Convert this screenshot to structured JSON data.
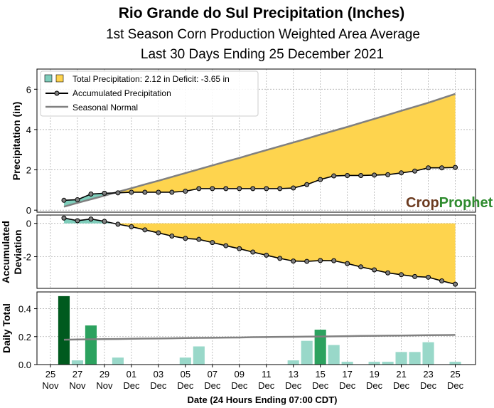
{
  "chart_data": {
    "type": "line",
    "title": "Rio Grande do Sul Precipitation (Inches)",
    "subtitle": "1st Season Corn Production Weighted Area Average",
    "subtitle2": "Last 30 Days Ending 25 December 2021",
    "xlabel": "Date (24 Hours Ending 07:00 CDT)",
    "x_tick_days": [
      "25",
      "27",
      "29",
      "01",
      "03",
      "05",
      "07",
      "09",
      "11",
      "13",
      "15",
      "17",
      "19",
      "21",
      "23",
      "25"
    ],
    "x_tick_months": [
      "Nov",
      "Nov",
      "Nov",
      "Dec",
      "Dec",
      "Dec",
      "Dec",
      "Dec",
      "Dec",
      "Dec",
      "Dec",
      "Dec",
      "Dec",
      "Dec",
      "Dec",
      "Dec"
    ],
    "x_ticks_days_index": [
      0,
      2,
      4,
      6,
      8,
      10,
      12,
      14,
      16,
      18,
      20,
      22,
      24,
      26,
      28,
      30
    ],
    "day_index_start": 1,
    "day_index_end": 30,
    "logo": {
      "part1": "Crop",
      "part2": "Prophet"
    },
    "colors": {
      "surplus": "#7fcdbb",
      "deficit": "#fed44e",
      "accum": "#000000",
      "marker": "#808080",
      "normal": "#808080",
      "bar_dark": "#005a1e",
      "bar_mid": "#2ca25f",
      "bar_light": "#99d8c9",
      "logo_crop": "#6b3a1f",
      "logo_prophet": "#2e8b2e"
    },
    "panel1": {
      "ylabel": "Precipitation (in)",
      "ylim": [
        -0.1,
        7.0
      ],
      "yticks": [
        0,
        2,
        4,
        6
      ],
      "legend": {
        "total": "Total Precipitation: 2.12 in Deficit: -3.65 in",
        "accum": "Accumulated Precipitation",
        "normal": "Seasonal Normal"
      },
      "accumulated": [
        0.49,
        0.52,
        0.8,
        0.84,
        0.86,
        0.89,
        0.89,
        0.89,
        0.89,
        0.94,
        1.07,
        1.07,
        1.07,
        1.07,
        1.07,
        1.07,
        1.07,
        1.1,
        1.27,
        1.52,
        1.7,
        1.72,
        1.72,
        1.74,
        1.76,
        1.85,
        1.94,
        2.1,
        2.1,
        2.12
      ],
      "normal": [
        0.17,
        0.36,
        0.54,
        0.72,
        0.91,
        1.09,
        1.28,
        1.46,
        1.65,
        1.84,
        2.03,
        2.22,
        2.41,
        2.59,
        2.79,
        2.98,
        3.17,
        3.36,
        3.55,
        3.75,
        3.94,
        4.13,
        4.33,
        4.53,
        4.73,
        4.93,
        5.13,
        5.33,
        5.55,
        5.77
      ]
    },
    "panel2": {
      "ylabel_line1": "Accumulated",
      "ylabel_line2": "Deviation",
      "ylim": [
        -3.9,
        0.5
      ],
      "yticks": [
        0,
        -2
      ],
      "deviation": [
        0.32,
        0.16,
        0.26,
        0.12,
        -0.05,
        -0.2,
        -0.39,
        -0.57,
        -0.76,
        -0.9,
        -0.96,
        -1.15,
        -1.34,
        -1.52,
        -1.72,
        -1.91,
        -2.1,
        -2.26,
        -2.28,
        -2.23,
        -2.24,
        -2.41,
        -2.61,
        -2.79,
        -2.97,
        -3.08,
        -3.19,
        -3.23,
        -3.45,
        -3.65
      ]
    },
    "panel3": {
      "ylabel": "Daily Total",
      "ylim": [
        0,
        0.52
      ],
      "yticks": [
        0.0,
        0.2,
        0.4
      ],
      "daily": [
        0.49,
        0.03,
        0.28,
        0.0,
        0.05,
        0.0,
        0.0,
        0.0,
        0.0,
        0.05,
        0.13,
        0.0,
        0.0,
        0.0,
        0.0,
        0.0,
        0.0,
        0.03,
        0.17,
        0.25,
        0.14,
        0.02,
        0.0,
        0.02,
        0.02,
        0.09,
        0.09,
        0.16,
        0.0,
        0.02
      ],
      "normal": [
        0.178,
        0.18,
        0.181,
        0.182,
        0.183,
        0.185,
        0.186,
        0.187,
        0.188,
        0.19,
        0.191,
        0.192,
        0.193,
        0.194,
        0.196,
        0.197,
        0.198,
        0.199,
        0.2,
        0.201,
        0.202,
        0.203,
        0.205,
        0.206,
        0.207,
        0.208,
        0.209,
        0.21,
        0.211,
        0.212
      ]
    }
  }
}
